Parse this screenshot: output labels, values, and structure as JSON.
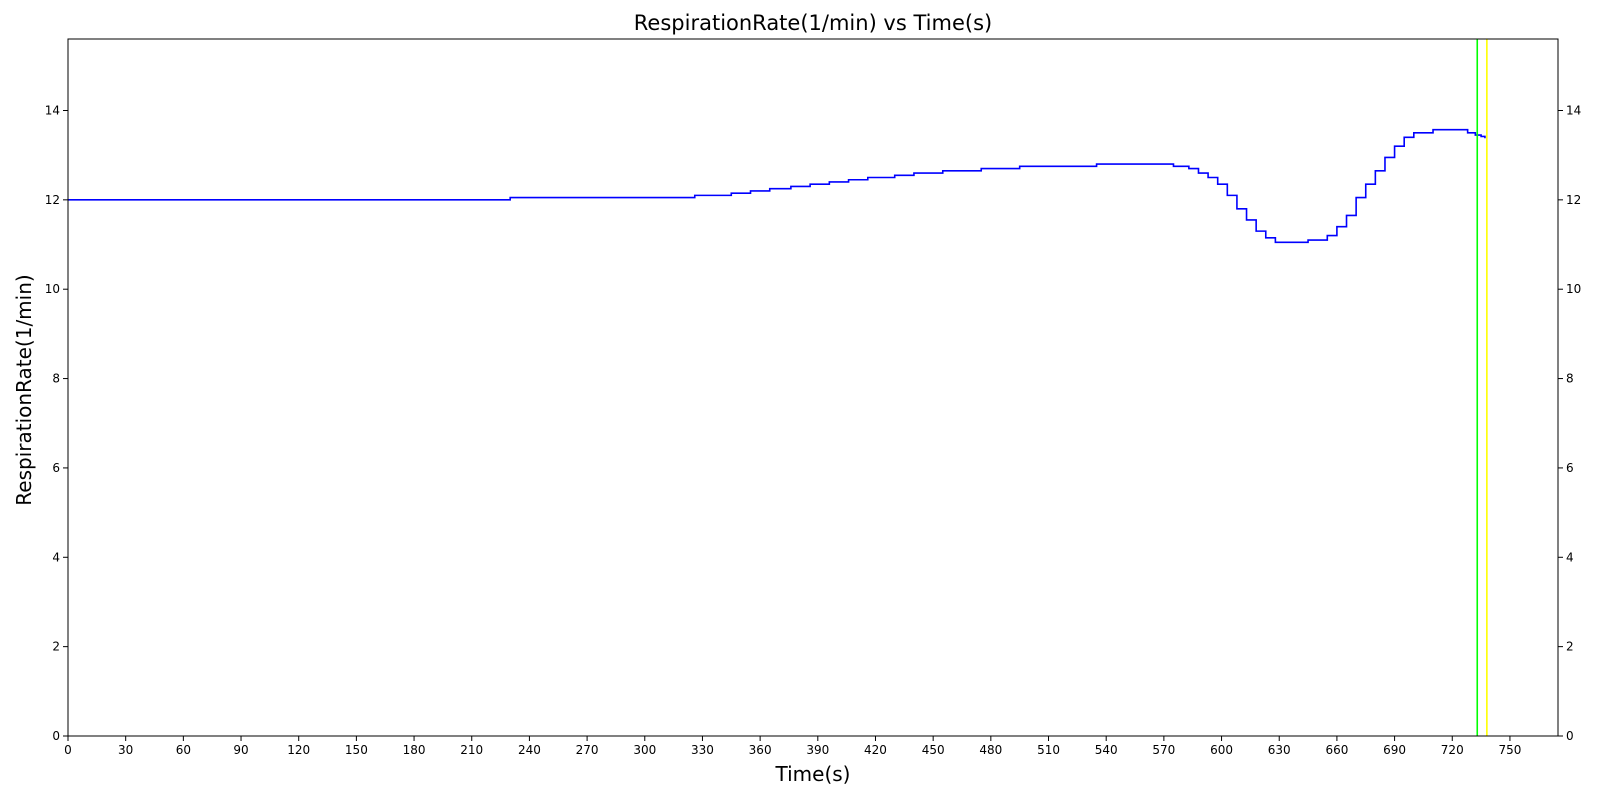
{
  "chart_data": {
    "type": "line",
    "title": "RespirationRate(1/min) vs Time(s)",
    "xlabel": "Time(s)",
    "ylabel": "RespirationRate(1/min)",
    "xlim": [
      0,
      775
    ],
    "ylim": [
      0,
      15.6
    ],
    "x_ticks": [
      0,
      30,
      60,
      90,
      120,
      150,
      180,
      210,
      240,
      270,
      300,
      330,
      360,
      390,
      420,
      450,
      480,
      510,
      540,
      570,
      600,
      630,
      660,
      690,
      720,
      750
    ],
    "y_ticks": [
      0,
      2,
      4,
      6,
      8,
      10,
      12,
      14
    ],
    "grid": false,
    "series": [
      {
        "color": "#0000ff",
        "step": true,
        "x": [
          0,
          230,
          326,
          345,
          355,
          365,
          376,
          386,
          396,
          406,
          416,
          430,
          440,
          455,
          475,
          495,
          535,
          575,
          583,
          588,
          593,
          598,
          603,
          608,
          613,
          618,
          623,
          628,
          645,
          655,
          660,
          665,
          670,
          675,
          680,
          685,
          690,
          695,
          700,
          710,
          728,
          732,
          735,
          737
        ],
        "y": [
          12.0,
          12.05,
          12.1,
          12.15,
          12.2,
          12.25,
          12.3,
          12.35,
          12.4,
          12.45,
          12.5,
          12.55,
          12.6,
          12.65,
          12.7,
          12.75,
          12.8,
          12.75,
          12.7,
          12.6,
          12.5,
          12.35,
          12.1,
          11.8,
          11.55,
          11.3,
          11.15,
          11.05,
          11.1,
          11.2,
          11.4,
          11.65,
          12.05,
          12.35,
          12.65,
          12.95,
          13.2,
          13.4,
          13.5,
          13.57,
          13.5,
          13.45,
          13.42,
          13.38
        ]
      }
    ],
    "vlines": [
      {
        "x": 733,
        "color": "#00ff00"
      },
      {
        "x": 738,
        "color": "#ffff00"
      }
    ]
  }
}
